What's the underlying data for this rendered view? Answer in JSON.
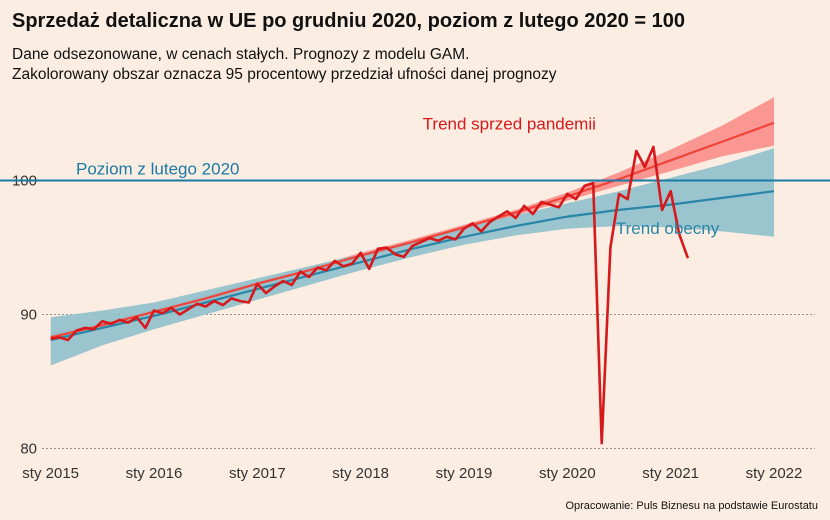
{
  "title": "Sprzedaż detaliczna w UE po grudniu 2020, poziom z lutego 2020 = 100",
  "subtitle1": "Dane odsezonowane, w cenach stałych. Prognozy z modelu GAM.",
  "subtitle2": "Zakolorowany obszar oznacza 95 procentowy przedział ufności danej prognozy",
  "source": "Opracowanie: Puls Biznesu na podstawie Eurostatu",
  "colors": {
    "background": "#FBEDE1",
    "actual": "#D7191C",
    "pre_trend": "#F0433A",
    "pre_band": "#F98D8A",
    "cur_trend": "#2A86A8",
    "cur_band": "#8FC0CC",
    "reference": "#1A7AA6"
  },
  "chart_data": {
    "type": "line",
    "x_unit": "year (decimal)",
    "xlim": [
      2014.8,
      2022.3
    ],
    "ylim": [
      79,
      106
    ],
    "x_ticks": [
      2015,
      2016,
      2017,
      2018,
      2019,
      2020,
      2021,
      2022
    ],
    "x_tick_labels": [
      "sty 2015",
      "sty 2016",
      "sty 2017",
      "sty 2018",
      "sty 2019",
      "sty 2020",
      "sty 2021",
      "sty 2022"
    ],
    "y_ticks": [
      80,
      90,
      100
    ],
    "y_tick_labels": [
      "80",
      "90",
      "100"
    ],
    "grid": "horizontal dotted",
    "reference_line": {
      "y": 100,
      "label": "Poziom z lutego 2020"
    },
    "annotations": {
      "pre_trend_label": "Trend sprzed pandemii",
      "cur_trend_label": "Trend obecny"
    },
    "series": [
      {
        "role": "actual",
        "x": [
          2015.0,
          2015.083,
          2015.167,
          2015.25,
          2015.333,
          2015.417,
          2015.5,
          2015.583,
          2015.667,
          2015.75,
          2015.833,
          2015.917,
          2016.0,
          2016.083,
          2016.167,
          2016.25,
          2016.333,
          2016.417,
          2016.5,
          2016.583,
          2016.667,
          2016.75,
          2016.833,
          2016.917,
          2017.0,
          2017.083,
          2017.167,
          2017.25,
          2017.333,
          2017.417,
          2017.5,
          2017.583,
          2017.667,
          2017.75,
          2017.833,
          2017.917,
          2018.0,
          2018.083,
          2018.167,
          2018.25,
          2018.333,
          2018.417,
          2018.5,
          2018.583,
          2018.667,
          2018.75,
          2018.833,
          2018.917,
          2019.0,
          2019.083,
          2019.167,
          2019.25,
          2019.333,
          2019.417,
          2019.5,
          2019.583,
          2019.667,
          2019.75,
          2019.833,
          2019.917,
          2020.0,
          2020.083,
          2020.167,
          2020.25,
          2020.333,
          2020.417,
          2020.5,
          2020.583,
          2020.667,
          2020.75,
          2020.833,
          2020.917,
          2021.0,
          2021.083,
          2021.167
        ],
        "y": [
          88.2,
          88.3,
          88.1,
          88.8,
          89.0,
          88.9,
          89.5,
          89.3,
          89.6,
          89.4,
          89.8,
          89.0,
          90.3,
          90.1,
          90.5,
          90.0,
          90.4,
          90.8,
          90.6,
          91.0,
          90.7,
          91.2,
          91.0,
          90.9,
          92.3,
          91.6,
          92.1,
          92.5,
          92.2,
          93.2,
          92.8,
          93.5,
          93.3,
          94.0,
          93.6,
          93.8,
          94.6,
          93.4,
          94.9,
          95.0,
          94.5,
          94.3,
          95.1,
          95.4,
          95.7,
          95.5,
          95.8,
          95.6,
          96.4,
          96.8,
          96.2,
          96.9,
          97.3,
          97.7,
          97.2,
          98.1,
          97.5,
          98.4,
          98.2,
          98.0,
          99.0,
          98.6,
          99.6,
          99.8,
          80.4,
          95.0,
          99.0,
          98.6,
          102.2,
          101.0,
          102.5,
          97.8,
          99.2,
          96.0,
          94.2
        ]
      },
      {
        "name": "Trend sprzed pandemii",
        "role": "pre_trend",
        "x": [
          2015.0,
          2015.5,
          2016.0,
          2016.5,
          2017.0,
          2017.5,
          2018.0,
          2018.5,
          2019.0,
          2019.5,
          2020.0,
          2020.5,
          2021.0,
          2021.5,
          2022.0
        ],
        "y": [
          88.3,
          89.2,
          90.2,
          91.2,
          92.3,
          93.3,
          94.4,
          95.4,
          96.5,
          97.6,
          98.8,
          100.1,
          101.5,
          102.9,
          104.3
        ],
        "band_lower": [
          88.0,
          89.0,
          90.0,
          91.0,
          92.1,
          93.1,
          94.2,
          95.2,
          96.3,
          97.4,
          98.5,
          99.6,
          100.7,
          101.8,
          102.6
        ],
        "band_upper": [
          88.6,
          89.4,
          90.4,
          91.4,
          92.5,
          93.5,
          94.6,
          95.6,
          96.7,
          97.8,
          99.1,
          100.6,
          102.3,
          104.1,
          106.2
        ]
      },
      {
        "name": "Trend obecny",
        "role": "cur_trend",
        "x": [
          2015.0,
          2015.5,
          2016.0,
          2016.5,
          2017.0,
          2017.5,
          2018.0,
          2018.5,
          2019.0,
          2019.5,
          2020.0,
          2020.5,
          2021.0,
          2021.5,
          2022.0
        ],
        "y": [
          88.1,
          89.0,
          89.9,
          90.9,
          91.9,
          92.9,
          93.9,
          94.9,
          95.8,
          96.6,
          97.3,
          97.8,
          98.2,
          98.7,
          99.2
        ],
        "band_lower": [
          86.2,
          87.7,
          88.9,
          90.0,
          91.1,
          92.2,
          93.3,
          94.3,
          95.2,
          95.9,
          96.4,
          96.6,
          96.5,
          96.2,
          95.8
        ],
        "band_upper": [
          89.8,
          90.3,
          90.9,
          91.8,
          92.7,
          93.6,
          94.5,
          95.5,
          96.5,
          97.4,
          98.3,
          99.2,
          100.2,
          101.2,
          102.4
        ]
      }
    ]
  }
}
